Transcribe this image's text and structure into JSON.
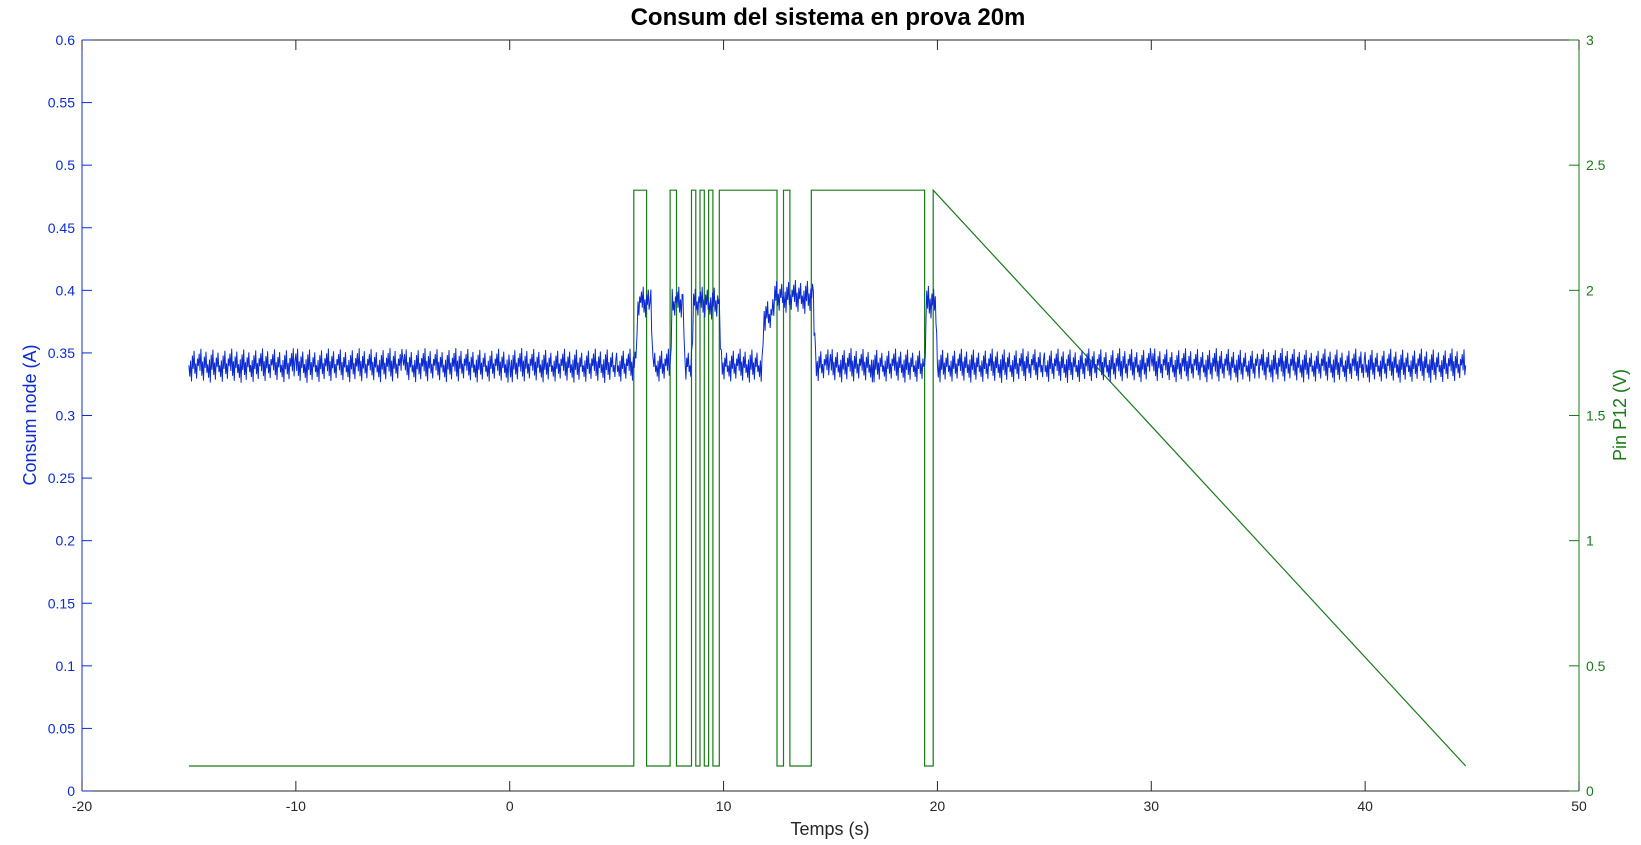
{
  "chart_data": {
    "type": "line",
    "title": "Consum del sistema en prova 20m",
    "xlabel": "Temps (s)",
    "ylabel_left": "Consum node (A)",
    "ylabel_right": "Pin P12 (V)",
    "xlim": [
      -20,
      50
    ],
    "ylim_left": [
      0,
      0.6
    ],
    "ylim_right": [
      0,
      3
    ],
    "x_ticks": [
      "-20",
      "-10",
      "0",
      "10",
      "20",
      "30",
      "40",
      "50"
    ],
    "y_left_ticks": [
      "0",
      "0.05",
      "0.1",
      "0.15",
      "0.2",
      "0.25",
      "0.3",
      "0.35",
      "0.4",
      "0.45",
      "0.5",
      "0.55",
      "0.6"
    ],
    "y_right_ticks": [
      "0",
      "0.5",
      "1",
      "1.5",
      "2",
      "2.5",
      "3"
    ],
    "grid": false,
    "colors": {
      "left_axis": "#0b2bd1",
      "right_axis": "#1a7a1a",
      "current_series": "#0b2bd1",
      "pin_series": "#1a7a1a"
    },
    "series": [
      {
        "axis": "left",
        "x": [
          -15,
          -10,
          -5,
          0,
          5,
          5.9,
          6.0,
          6.6,
          6.7,
          7.5,
          7.6,
          8.1,
          8.2,
          8.5,
          8.6,
          9.8,
          9.9,
          11.8,
          11.9,
          12.3,
          12.4,
          14.2,
          14.3,
          15,
          17,
          19.4,
          19.5,
          19.9,
          20.0,
          25,
          30,
          35,
          40,
          44.7
        ],
        "y": [
          0.34,
          0.34,
          0.34,
          0.34,
          0.34,
          0.34,
          0.39,
          0.39,
          0.34,
          0.34,
          0.39,
          0.39,
          0.34,
          0.34,
          0.39,
          0.39,
          0.34,
          0.34,
          0.38,
          0.38,
          0.395,
          0.395,
          0.34,
          0.34,
          0.34,
          0.34,
          0.39,
          0.39,
          0.34,
          0.34,
          0.34,
          0.34,
          0.34,
          0.34
        ]
      },
      {
        "axis": "right",
        "x": [
          -15,
          5.8,
          5.8,
          6.4,
          6.4,
          7.5,
          7.5,
          7.8,
          7.8,
          8.5,
          8.5,
          8.7,
          8.7,
          8.9,
          8.9,
          9.1,
          9.1,
          9.3,
          9.3,
          9.5,
          9.5,
          9.8,
          9.8,
          12.5,
          12.5,
          12.8,
          12.8,
          13.1,
          13.1,
          14.1,
          14.1,
          19.4,
          19.4,
          19.8,
          19.8,
          44.7
        ],
        "y": [
          0.1,
          0.1,
          2.4,
          2.4,
          0.1,
          0.1,
          2.4,
          2.4,
          0.1,
          0.1,
          2.4,
          2.4,
          0.1,
          0.1,
          2.4,
          2.4,
          0.1,
          0.1,
          2.4,
          2.4,
          0.1,
          0.1,
          2.4,
          2.4,
          0.1,
          0.1,
          2.4,
          2.4,
          0.1,
          0.1,
          2.4,
          2.4,
          0.1,
          0.1,
          2.4,
          0.1
        ]
      }
    ]
  }
}
